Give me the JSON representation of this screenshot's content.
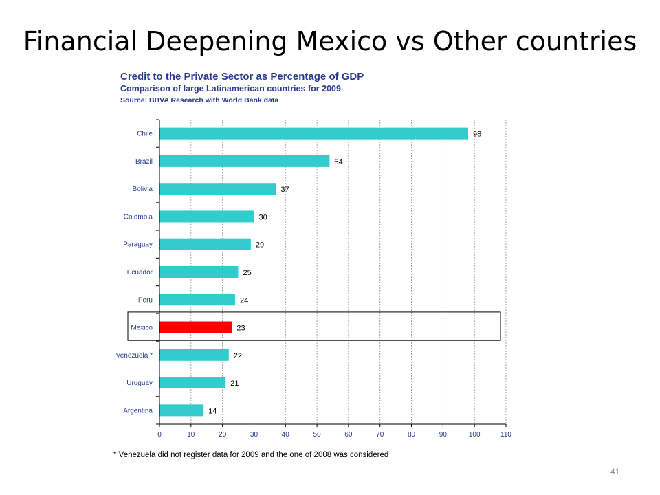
{
  "slide": {
    "title": "Financial Deepening Mexico vs Other countries",
    "footnote": "* Venezuela did not register data for 2009 and the one of 2008 was considered",
    "page_number": "41"
  },
  "chart_data": {
    "type": "bar",
    "orientation": "horizontal",
    "title": "Credit to the Private Sector as Percentage of GDP",
    "subtitle": "Comparison of large Latinamerican countries for 2009",
    "source": "Source: BBVA Research with World Bank data",
    "categories": [
      "Chile",
      "Brazil",
      "Bolivia",
      "Colombia",
      "Paraguay",
      "Ecuador",
      "Peru",
      "Mexico",
      "Venezuela *",
      "Uruguay",
      "Argentina"
    ],
    "values": [
      98,
      54,
      37,
      30,
      29,
      25,
      24,
      23,
      22,
      21,
      14
    ],
    "xlim": [
      0,
      110
    ],
    "xticks": [
      0,
      10,
      20,
      30,
      40,
      50,
      60,
      70,
      80,
      90,
      100,
      110
    ],
    "grid": "vertical dashed",
    "highlight": "Mexico",
    "colors": {
      "bar": "#33cccc",
      "highlight": "#ff0000",
      "axis_text": "#2b3a8f"
    }
  }
}
